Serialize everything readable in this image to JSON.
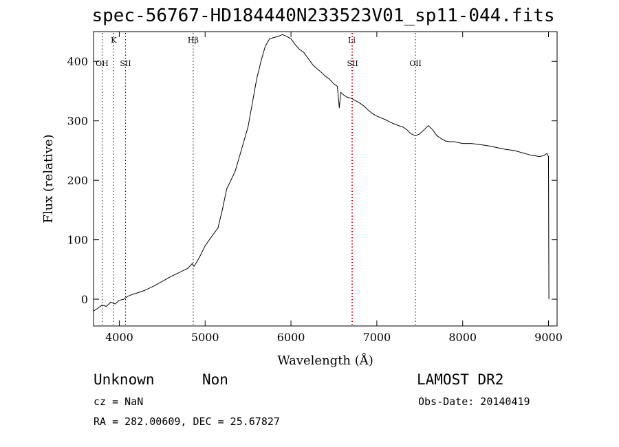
{
  "title": "spec-56767-HD184440N233523V01_sp11-044.fits",
  "footer": {
    "class_label": "Unknown",
    "subclass_label": "Non",
    "survey": "LAMOST DR2",
    "cz": "cz = NaN",
    "obs_date": "Obs-Date: 20140419",
    "coords": "RA = 282.00609, DEC =  25.67827"
  },
  "chart_data": {
    "type": "line",
    "title": "spec-56767-HD184440N233523V01_sp11-044.fits",
    "xlabel": "Wavelength (Å)",
    "ylabel": "Flux (relative)",
    "xlim": [
      3700,
      9100
    ],
    "ylim": [
      -45,
      450
    ],
    "xticks": [
      4000,
      5000,
      6000,
      7000,
      8000,
      9000
    ],
    "yticks": [
      0,
      100,
      200,
      300,
      400
    ],
    "grid": false,
    "line_color": "#000000",
    "series": [
      {
        "x": [
          3700,
          3750,
          3800,
          3850,
          3900,
          3950,
          4000,
          4050,
          4100,
          4150,
          4200,
          4300,
          4400,
          4500,
          4600,
          4700,
          4800,
          4850,
          4870,
          4900,
          4950,
          5000,
          5050,
          5100,
          5150,
          5200,
          5250,
          5300,
          5350,
          5400,
          5450,
          5500,
          5550,
          5600,
          5650,
          5700,
          5750,
          5800,
          5850,
          5900,
          5950,
          6000,
          6050,
          6100,
          6150,
          6200,
          6250,
          6300,
          6350,
          6400,
          6450,
          6500,
          6540,
          6563,
          6580,
          6600,
          6650,
          6700,
          6750,
          6800,
          6850,
          6900,
          6950,
          7000,
          7050,
          7100,
          7150,
          7200,
          7250,
          7300,
          7350,
          7400,
          7450,
          7500,
          7550,
          7600,
          7650,
          7700,
          7750,
          7800,
          7850,
          7900,
          8000,
          8100,
          8200,
          8300,
          8400,
          8500,
          8600,
          8700,
          8800,
          8900,
          8950,
          8980,
          9000,
          9005
        ],
        "y": [
          -20,
          -15,
          -10,
          -12,
          -5,
          -8,
          -2,
          0,
          5,
          8,
          10,
          15,
          22,
          30,
          38,
          45,
          52,
          60,
          55,
          62,
          75,
          90,
          100,
          110,
          120,
          150,
          185,
          200,
          215,
          240,
          265,
          290,
          330,
          370,
          400,
          425,
          438,
          440,
          442,
          445,
          442,
          438,
          428,
          420,
          415,
          405,
          395,
          388,
          382,
          375,
          370,
          362,
          358,
          322,
          348,
          345,
          340,
          338,
          334,
          330,
          325,
          318,
          312,
          308,
          305,
          302,
          298,
          295,
          292,
          290,
          285,
          278,
          275,
          278,
          285,
          292,
          285,
          275,
          270,
          266,
          265,
          265,
          262,
          262,
          260,
          258,
          255,
          252,
          250,
          246,
          242,
          240,
          242,
          245,
          240,
          0
        ]
      }
    ],
    "annotations": [
      {
        "label": "K",
        "x": 3934,
        "row": 1,
        "color": "#000000"
      },
      {
        "label": "OH",
        "x": 3800,
        "row": 2,
        "color": "#000000"
      },
      {
        "label": "SII",
        "x": 4072,
        "row": 2,
        "color": "#000000"
      },
      {
        "label": "Hβ",
        "x": 4861,
        "row": 1,
        "color": "#000000"
      },
      {
        "label": "Li",
        "x": 6708,
        "row": 1,
        "color": "#cc0000"
      },
      {
        "label": "SII",
        "x": 6717,
        "row": 2,
        "color": "#cc0000"
      },
      {
        "label": "OII",
        "x": 7450,
        "row": 2,
        "color": "#000000"
      }
    ]
  }
}
